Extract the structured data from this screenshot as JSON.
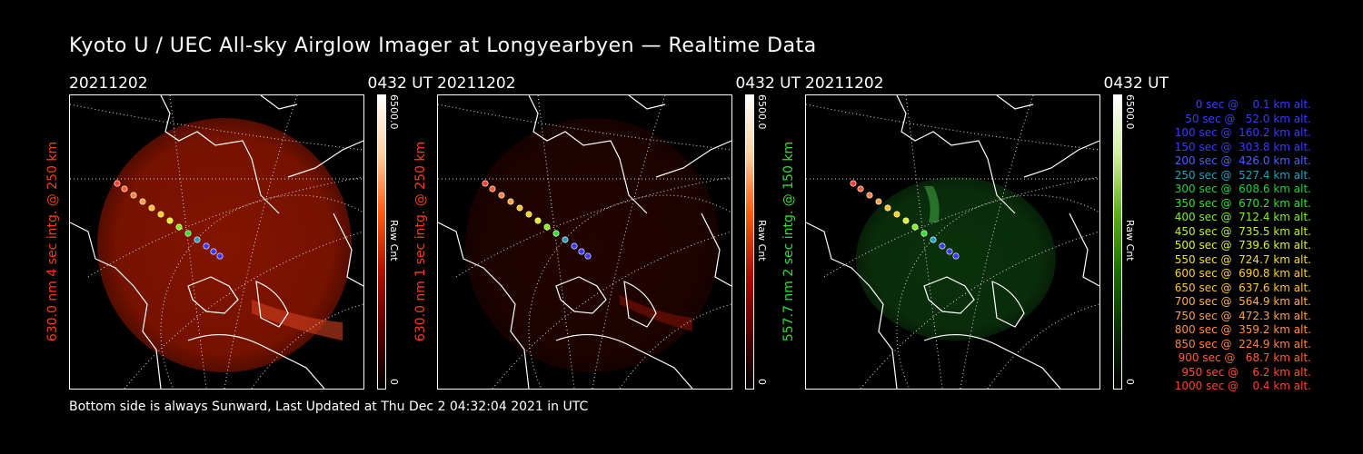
{
  "title": "Kyoto U / UEC All-sky Airglow Imager at Longyearbyen — Realtime Data",
  "footer": "Bottom side is always Sunward, Last Updated at Thu Dec  2 04:32:04 2021 in UTC",
  "panels": [
    {
      "date": "20211202",
      "time": "0432 UT",
      "side_label": "630.0 nm 4 sec intg. @ 250 km",
      "label_color": "#ff3a1a",
      "colorbar_max": "6500.0",
      "colorbar_min": "0",
      "colorbar_unit": "Raw Cnt",
      "colormap": [
        "#000000",
        "#5a0000",
        "#b01000",
        "#ff5a10",
        "#ffd0a0",
        "#ffffff"
      ],
      "glow_color": "#8a1500",
      "glow_icon": "airglow-red-image"
    },
    {
      "date": "20211202",
      "time": "0432 UT",
      "side_label": "630.0 nm 1 sec intg. @ 250 km",
      "label_color": "#ff3a1a",
      "colorbar_max": "6500.0",
      "colorbar_min": "0",
      "colorbar_unit": "Raw Cnt",
      "colormap": [
        "#000000",
        "#5a0000",
        "#b01000",
        "#ff5a10",
        "#ffd0a0",
        "#ffffff"
      ],
      "glow_color": "#3a0500",
      "glow_icon": "airglow-red-dim-image"
    },
    {
      "date": "20211202",
      "time": "0432 UT",
      "side_label": "557.7 nm 2 sec intg. @ 150 km",
      "label_color": "#33dd33",
      "colorbar_max": "6500.0",
      "colorbar_min": "0",
      "colorbar_unit": "Raw Cnt",
      "colormap": [
        "#000000",
        "#0a3000",
        "#1a7000",
        "#60b010",
        "#d0f0a0",
        "#ffffff"
      ],
      "glow_color": "#0f4a10",
      "glow_icon": "airglow-green-image"
    }
  ],
  "legend": [
    {
      "text": "0 sec @    0.1 km alt.",
      "color": "#3a3aff"
    },
    {
      "text": "50 sec @   52.0 km alt.",
      "color": "#3a3aff"
    },
    {
      "text": "100 sec @  160.2 km alt.",
      "color": "#3a3aff"
    },
    {
      "text": "150 sec @  303.8 km alt.",
      "color": "#3a3aff"
    },
    {
      "text": "200 sec @  426.0 km alt.",
      "color": "#4a60ff"
    },
    {
      "text": "250 sec @  527.4 km alt.",
      "color": "#20a0c0"
    },
    {
      "text": "300 sec @  608.6 km alt.",
      "color": "#20d040"
    },
    {
      "text": "350 sec @  670.2 km alt.",
      "color": "#30e030"
    },
    {
      "text": "400 sec @  712.4 km alt.",
      "color": "#80f020"
    },
    {
      "text": "450 sec @  735.5 km alt.",
      "color": "#c0f020"
    },
    {
      "text": "500 sec @  739.6 km alt.",
      "color": "#e0f020"
    },
    {
      "text": "550 sec @  724.7 km alt.",
      "color": "#f0e020"
    },
    {
      "text": "600 sec @  690.8 km alt.",
      "color": "#ffd020"
    },
    {
      "text": "650 sec @  637.6 km alt.",
      "color": "#ffc030"
    },
    {
      "text": "700 sec @  564.9 km alt.",
      "color": "#ffb040"
    },
    {
      "text": "750 sec @  472.3 km alt.",
      "color": "#ffa040"
    },
    {
      "text": "800 sec @  359.2 km alt.",
      "color": "#ff9040"
    },
    {
      "text": "850 sec @  224.9 km alt.",
      "color": "#ff8040"
    },
    {
      "text": "900 sec @   68.7 km alt.",
      "color": "#ff6030"
    },
    {
      "text": "950 sec @    6.2 km alt.",
      "color": "#ff5030"
    },
    {
      "text": "1000 sec @    0.4 km alt.",
      "color": "#ff4030"
    }
  ]
}
